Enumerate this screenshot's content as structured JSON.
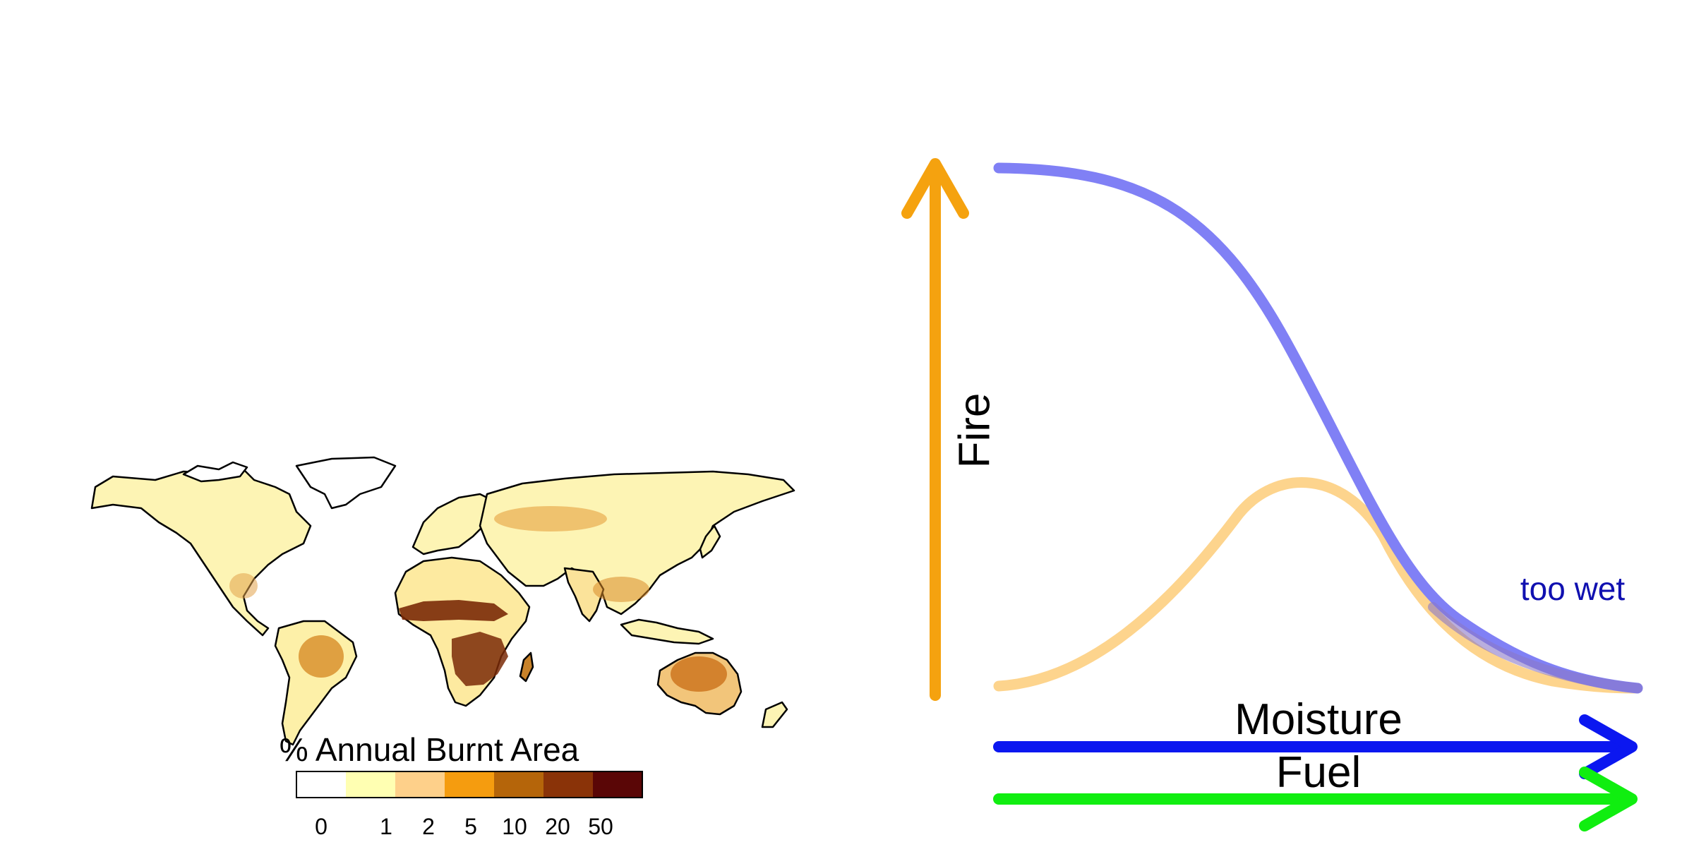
{
  "map": {
    "legend_title": "% Annual Burnt Area",
    "legend_ticks": [
      "0",
      "1",
      "2",
      "5",
      "10",
      "20",
      "50"
    ],
    "legend_colors": [
      "#ffffff",
      "#ffffb2",
      "#fed08a",
      "#f59c0f",
      "#b5650a",
      "#8a3308",
      "#5a0606"
    ]
  },
  "diagram": {
    "y_axis_label": "Fire",
    "moisture_label": "Moisture",
    "fuel_label": "Fuel",
    "too_wet_label": "too wet",
    "colors": {
      "fire_axis": "#f5a20f",
      "moisture_curve": "#8080f5",
      "fire_curve": "#fdd287",
      "moisture_arrow": "#0b17f0",
      "fuel_arrow": "#10ee10",
      "too_wet_text": "#1010b0"
    }
  }
}
